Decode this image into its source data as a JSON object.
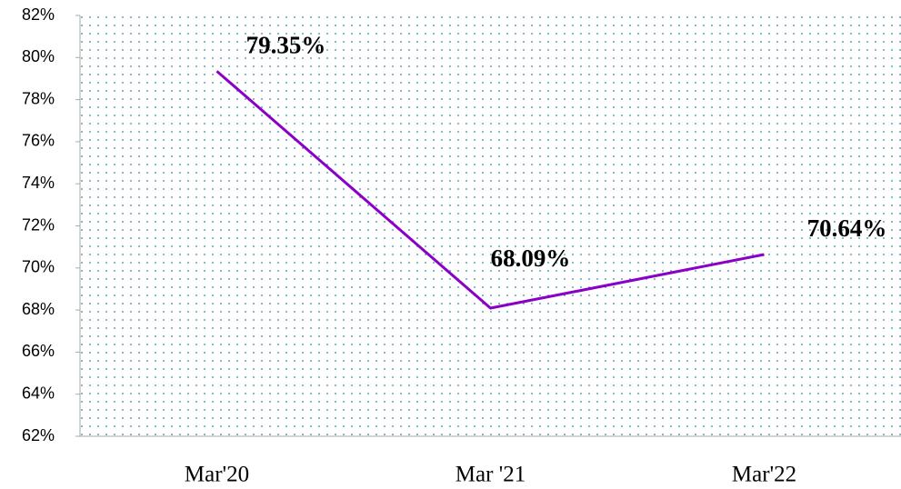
{
  "chart_data": {
    "type": "line",
    "categories": [
      "Mar'20",
      "Mar '21",
      "Mar'22"
    ],
    "series": [
      {
        "color": "#8b00c8",
        "values": [
          79.35,
          68.09,
          70.64
        ],
        "value_labels": [
          "79.35%",
          "68.09%",
          "70.64%"
        ]
      }
    ],
    "ylim": [
      62,
      82
    ],
    "yticks": [
      {
        "value": 62,
        "label": "62%"
      },
      {
        "value": 64,
        "label": "64%"
      },
      {
        "value": 66,
        "label": "66%"
      },
      {
        "value": 68,
        "label": "68%"
      },
      {
        "value": 70,
        "label": "70%"
      },
      {
        "value": 72,
        "label": "72%"
      },
      {
        "value": 74,
        "label": "74%"
      },
      {
        "value": 76,
        "label": "76%"
      },
      {
        "value": 78,
        "label": "78%"
      },
      {
        "value": 80,
        "label": "80%"
      },
      {
        "value": 82,
        "label": "82%"
      }
    ],
    "background_pattern": "dotted",
    "pattern_color": "#2a8aa0"
  }
}
